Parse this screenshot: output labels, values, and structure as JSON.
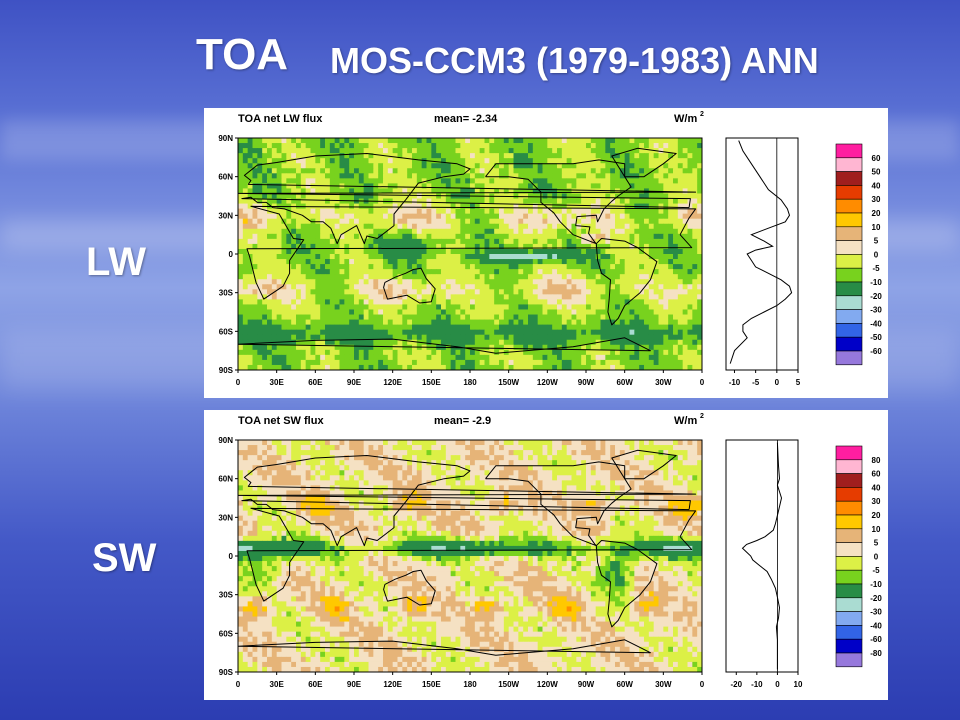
{
  "slide": {
    "title_left": "TOA",
    "title_right": "MOS-CCM3 (1979-1983) ANN",
    "row_labels": [
      "LW",
      "SW"
    ]
  },
  "panels": [
    {
      "id": "lw",
      "title": "TOA net LW flux",
      "mean_label": "mean= -2.34",
      "units_label": "W/m",
      "units_exp": "2",
      "lat_ticks": [
        "90N",
        "60N",
        "30N",
        "0",
        "30S",
        "60S",
        "90S"
      ],
      "lon_ticks": [
        "0",
        "30E",
        "60E",
        "90E",
        "120E",
        "150E",
        "180",
        "150W",
        "120W",
        "90W",
        "60W",
        "30W",
        "0"
      ],
      "zonal_ticks": [
        "-10",
        "-5",
        "0",
        "5"
      ],
      "zonal_range": [
        -12,
        5
      ],
      "zonal_profile": [
        {
          "lat": 88,
          "v": -9
        },
        {
          "lat": 80,
          "v": -8
        },
        {
          "lat": 70,
          "v": -6
        },
        {
          "lat": 60,
          "v": -4
        },
        {
          "lat": 50,
          "v": -2
        },
        {
          "lat": 42,
          "v": 1
        },
        {
          "lat": 35,
          "v": 2.5
        },
        {
          "lat": 30,
          "v": 3
        },
        {
          "lat": 25,
          "v": 2
        },
        {
          "lat": 20,
          "v": -2
        },
        {
          "lat": 15,
          "v": -6
        },
        {
          "lat": 10,
          "v": -3
        },
        {
          "lat": 6,
          "v": -1
        },
        {
          "lat": 3,
          "v": -5
        },
        {
          "lat": 0,
          "v": -7
        },
        {
          "lat": -5,
          "v": -6
        },
        {
          "lat": -10,
          "v": -5
        },
        {
          "lat": -15,
          "v": -2
        },
        {
          "lat": -20,
          "v": 1
        },
        {
          "lat": -25,
          "v": 3
        },
        {
          "lat": -30,
          "v": 3.5
        },
        {
          "lat": -35,
          "v": 2
        },
        {
          "lat": -40,
          "v": 0
        },
        {
          "lat": -45,
          "v": -3
        },
        {
          "lat": -50,
          "v": -6
        },
        {
          "lat": -55,
          "v": -8
        },
        {
          "lat": -60,
          "v": -8
        },
        {
          "lat": -65,
          "v": -7
        },
        {
          "lat": -75,
          "v": -10
        },
        {
          "lat": -85,
          "v": -11
        }
      ],
      "legend_labels": [
        "60",
        "50",
        "40",
        "30",
        "20",
        "10",
        "5",
        "0",
        "-5",
        "-10",
        "-20",
        "-30",
        "-40",
        "-50",
        "-60"
      ],
      "colors": [
        "#ff1ea0",
        "#ffb6d2",
        "#a01e1e",
        "#e63c00",
        "#ff8c00",
        "#ffc800",
        "#e6b478",
        "#f5e1c3",
        "#dcf046",
        "#78d21e",
        "#288c46",
        "#aadcd2",
        "#82aaf0",
        "#3264e6",
        "#0000c8",
        "#9678dc"
      ]
    },
    {
      "id": "sw",
      "title": "TOA net SW flux",
      "mean_label": "mean= -2.9",
      "units_label": "W/m",
      "units_exp": "2",
      "lat_ticks": [
        "90N",
        "60N",
        "30N",
        "0",
        "30S",
        "60S",
        "90S"
      ],
      "lon_ticks": [
        "0",
        "30E",
        "60E",
        "90E",
        "120E",
        "150E",
        "180",
        "150W",
        "120W",
        "90W",
        "60W",
        "30W",
        "0"
      ],
      "zonal_ticks": [
        "-20",
        "-10",
        "0",
        "10"
      ],
      "zonal_range": [
        -25,
        10
      ],
      "zonal_profile": [
        {
          "lat": 88,
          "v": 0
        },
        {
          "lat": 70,
          "v": 0.5
        },
        {
          "lat": 60,
          "v": 1
        },
        {
          "lat": 55,
          "v": 0
        },
        {
          "lat": 45,
          "v": 2
        },
        {
          "lat": 35,
          "v": 0.5
        },
        {
          "lat": 25,
          "v": -1
        },
        {
          "lat": 20,
          "v": -2
        },
        {
          "lat": 15,
          "v": -6
        },
        {
          "lat": 12,
          "v": -10
        },
        {
          "lat": 9,
          "v": -15
        },
        {
          "lat": 6,
          "v": -17
        },
        {
          "lat": 3,
          "v": -15
        },
        {
          "lat": 0,
          "v": -13
        },
        {
          "lat": -3,
          "v": -12
        },
        {
          "lat": -7,
          "v": -9
        },
        {
          "lat": -12,
          "v": -5
        },
        {
          "lat": -18,
          "v": -3
        },
        {
          "lat": -25,
          "v": -1
        },
        {
          "lat": -32,
          "v": 0
        },
        {
          "lat": -40,
          "v": 1
        },
        {
          "lat": -48,
          "v": 0.5
        },
        {
          "lat": -55,
          "v": -0.5
        },
        {
          "lat": -65,
          "v": 0
        },
        {
          "lat": -75,
          "v": 0
        },
        {
          "lat": -88,
          "v": 0
        }
      ],
      "legend_labels": [
        "80",
        "60",
        "40",
        "30",
        "20",
        "10",
        "5",
        "0",
        "-5",
        "-10",
        "-20",
        "-30",
        "-40",
        "-60",
        "-80"
      ],
      "colors": [
        "#ff1ea0",
        "#ffb6d2",
        "#a01e1e",
        "#e63c00",
        "#ff8c00",
        "#ffc800",
        "#e6b478",
        "#f5e1c3",
        "#dcf046",
        "#78d21e",
        "#288c46",
        "#aadcd2",
        "#82aaf0",
        "#3264e6",
        "#0000c8",
        "#9678dc"
      ]
    }
  ]
}
